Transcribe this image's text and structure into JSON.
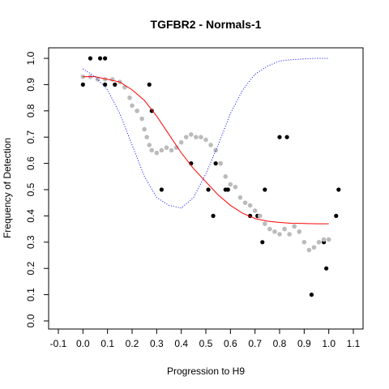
{
  "chart_data": {
    "type": "scatter",
    "title": "TGFBR2 - Normals-1",
    "xlabel": "Progression to H9",
    "ylabel": "Frequency of Detection",
    "xlim": [
      -0.1,
      1.1
    ],
    "ylim": [
      0.0,
      1.0
    ],
    "x_ticks": [
      "-0.1",
      "0.0",
      "0.1",
      "0.2",
      "0.3",
      "0.4",
      "0.5",
      "0.6",
      "0.7",
      "0.8",
      "0.9",
      "1.0",
      "1.1"
    ],
    "y_ticks": [
      "0.0",
      "0.1",
      "0.2",
      "0.3",
      "0.4",
      "0.5",
      "0.6",
      "0.7",
      "0.8",
      "0.9",
      "1.0"
    ],
    "grid": false,
    "series": [
      {
        "style": "points",
        "color": "#000000",
        "points": [
          [
            0.0,
            0.9
          ],
          [
            0.03,
            1.0
          ],
          [
            0.07,
            1.0
          ],
          [
            0.09,
            1.0
          ],
          [
            0.09,
            0.9
          ],
          [
            0.13,
            0.9
          ],
          [
            0.22,
            0.8
          ],
          [
            0.27,
            0.9
          ],
          [
            0.28,
            0.8
          ],
          [
            0.32,
            0.5
          ],
          [
            0.44,
            0.6
          ],
          [
            0.51,
            0.5
          ],
          [
            0.53,
            0.4
          ],
          [
            0.54,
            0.6
          ],
          [
            0.56,
            0.6
          ],
          [
            0.58,
            0.5
          ],
          [
            0.59,
            0.5
          ],
          [
            0.68,
            0.4
          ],
          [
            0.71,
            0.4
          ],
          [
            0.73,
            0.3
          ],
          [
            0.74,
            0.5
          ],
          [
            0.8,
            0.7
          ],
          [
            0.83,
            0.7
          ],
          [
            0.93,
            0.1
          ],
          [
            0.98,
            0.3
          ],
          [
            0.99,
            0.2
          ],
          [
            1.03,
            0.4
          ],
          [
            1.04,
            0.5
          ]
        ]
      },
      {
        "style": "points",
        "color": "#bbbbbb",
        "points": [
          [
            0.0,
            0.93
          ],
          [
            0.03,
            0.93
          ],
          [
            0.06,
            0.92
          ],
          [
            0.09,
            0.92
          ],
          [
            0.12,
            0.92
          ],
          [
            0.15,
            0.91
          ],
          [
            0.17,
            0.89
          ],
          [
            0.19,
            0.85
          ],
          [
            0.2,
            0.82
          ],
          [
            0.22,
            0.8
          ],
          [
            0.24,
            0.77
          ],
          [
            0.25,
            0.73
          ],
          [
            0.26,
            0.7
          ],
          [
            0.27,
            0.67
          ],
          [
            0.28,
            0.65
          ],
          [
            0.3,
            0.64
          ],
          [
            0.32,
            0.65
          ],
          [
            0.34,
            0.66
          ],
          [
            0.36,
            0.65
          ],
          [
            0.38,
            0.66
          ],
          [
            0.4,
            0.68
          ],
          [
            0.42,
            0.7
          ],
          [
            0.44,
            0.71
          ],
          [
            0.46,
            0.7
          ],
          [
            0.48,
            0.7
          ],
          [
            0.5,
            0.69
          ],
          [
            0.52,
            0.67
          ],
          [
            0.54,
            0.65
          ],
          [
            0.56,
            0.6
          ],
          [
            0.58,
            0.55
          ],
          [
            0.6,
            0.52
          ],
          [
            0.62,
            0.51
          ],
          [
            0.64,
            0.47
          ],
          [
            0.66,
            0.45
          ],
          [
            0.68,
            0.44
          ],
          [
            0.7,
            0.42
          ],
          [
            0.72,
            0.4
          ],
          [
            0.74,
            0.37
          ],
          [
            0.76,
            0.35
          ],
          [
            0.78,
            0.34
          ],
          [
            0.8,
            0.33
          ],
          [
            0.82,
            0.35
          ],
          [
            0.84,
            0.33
          ],
          [
            0.86,
            0.36
          ],
          [
            0.88,
            0.34
          ],
          [
            0.9,
            0.3
          ],
          [
            0.92,
            0.27
          ],
          [
            0.94,
            0.28
          ],
          [
            0.96,
            0.3
          ],
          [
            0.98,
            0.31
          ],
          [
            1.0,
            0.31
          ]
        ]
      },
      {
        "style": "line",
        "color": "#ff0000",
        "points": [
          [
            0.0,
            0.93
          ],
          [
            0.05,
            0.93
          ],
          [
            0.1,
            0.92
          ],
          [
            0.15,
            0.91
          ],
          [
            0.2,
            0.88
          ],
          [
            0.25,
            0.84
          ],
          [
            0.3,
            0.78
          ],
          [
            0.35,
            0.71
          ],
          [
            0.4,
            0.64
          ],
          [
            0.45,
            0.58
          ],
          [
            0.5,
            0.53
          ],
          [
            0.55,
            0.48
          ],
          [
            0.6,
            0.44
          ],
          [
            0.65,
            0.41
          ],
          [
            0.7,
            0.39
          ],
          [
            0.75,
            0.38
          ],
          [
            0.8,
            0.375
          ],
          [
            0.85,
            0.372
          ],
          [
            0.9,
            0.371
          ],
          [
            0.95,
            0.37
          ],
          [
            1.0,
            0.37
          ]
        ]
      },
      {
        "style": "dotted",
        "color": "#0000ff",
        "points": [
          [
            0.0,
            0.96
          ],
          [
            0.05,
            0.93
          ],
          [
            0.1,
            0.88
          ],
          [
            0.15,
            0.79
          ],
          [
            0.2,
            0.67
          ],
          [
            0.25,
            0.55
          ],
          [
            0.3,
            0.47
          ],
          [
            0.35,
            0.44
          ],
          [
            0.4,
            0.43
          ],
          [
            0.45,
            0.47
          ],
          [
            0.5,
            0.56
          ],
          [
            0.55,
            0.67
          ],
          [
            0.6,
            0.79
          ],
          [
            0.65,
            0.88
          ],
          [
            0.7,
            0.94
          ],
          [
            0.75,
            0.97
          ],
          [
            0.8,
            0.99
          ],
          [
            0.85,
            0.995
          ],
          [
            0.9,
            0.998
          ],
          [
            0.95,
            1.0
          ],
          [
            1.0,
            1.0
          ]
        ]
      }
    ]
  }
}
